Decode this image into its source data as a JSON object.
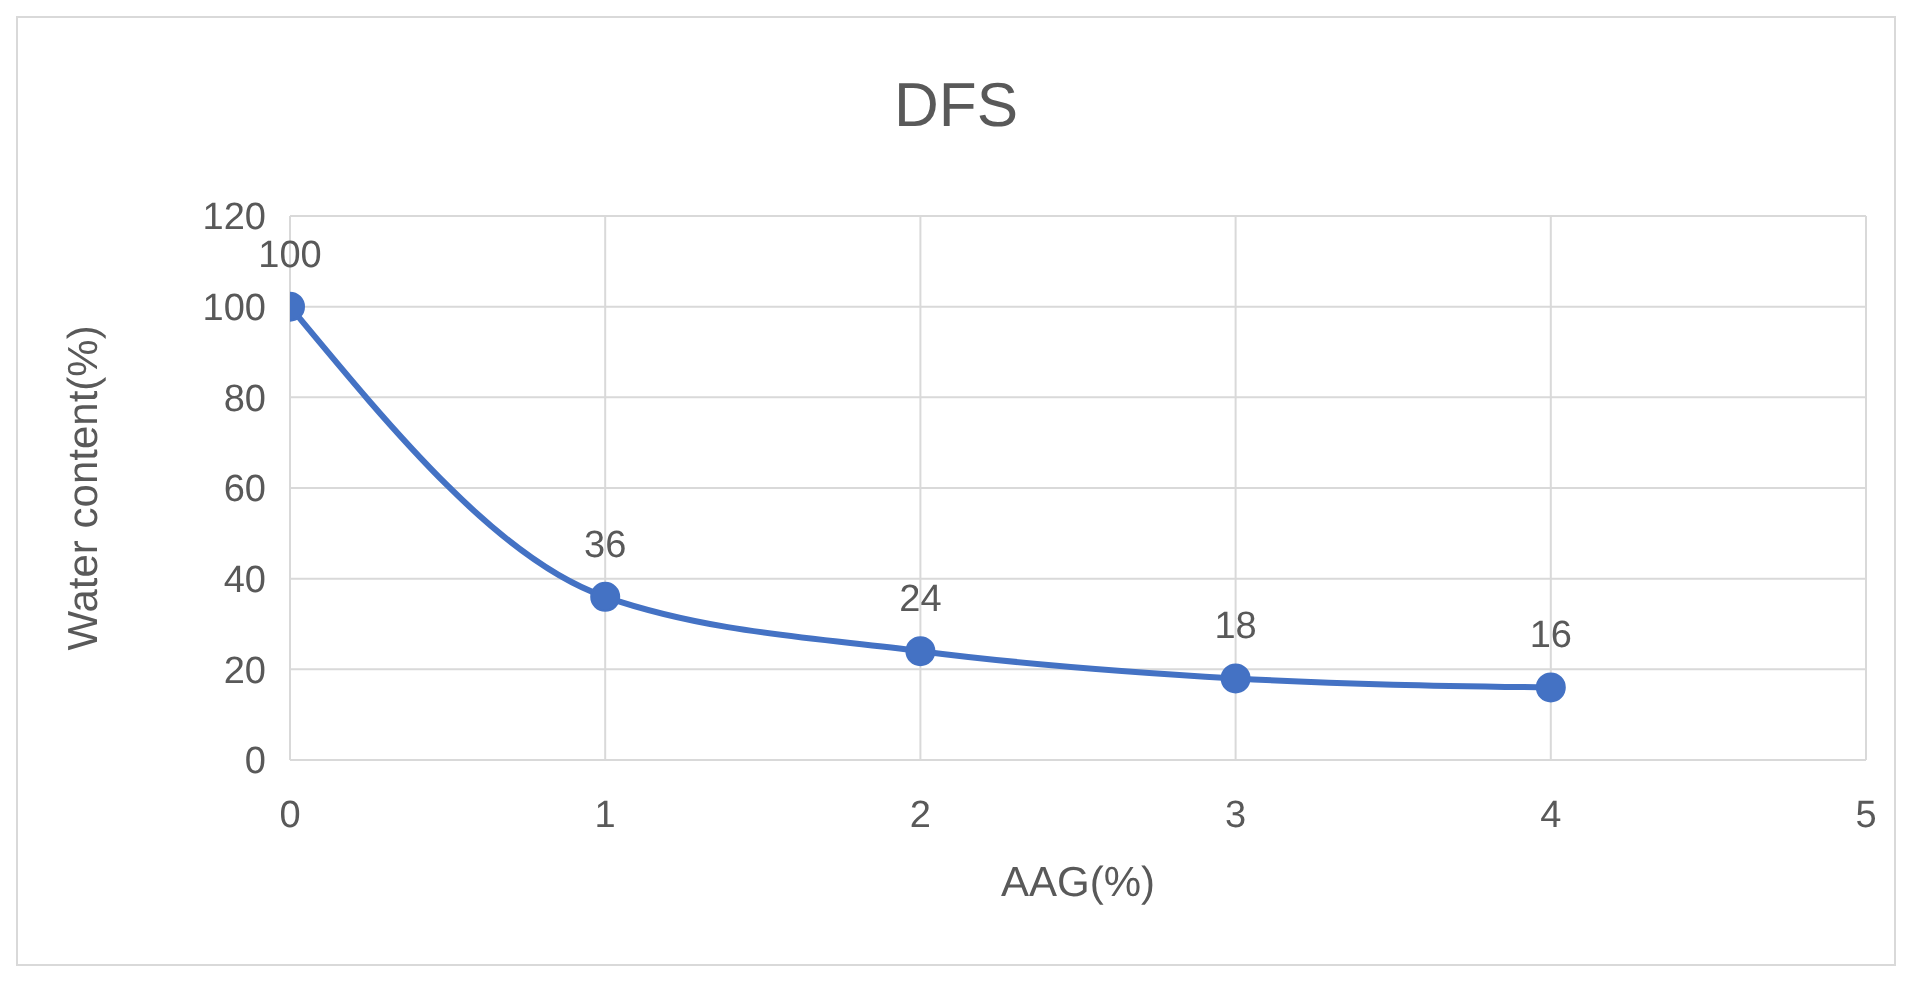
{
  "chart_data": {
    "type": "line",
    "title": "DFS",
    "xlabel": "AAG(%)",
    "ylabel": "Water content(%)",
    "x": [
      0,
      1,
      2,
      3,
      4
    ],
    "series": [
      {
        "color": "#4472c4",
        "values": [
          100,
          36,
          24,
          18,
          16
        ]
      }
    ],
    "xlim": [
      0,
      5
    ],
    "xticks": [
      0,
      1,
      2,
      3,
      4,
      5
    ],
    "ylim": [
      0,
      120
    ],
    "yticks": [
      0,
      20,
      40,
      60,
      80,
      100,
      120
    ],
    "grid": true,
    "marker": "circle",
    "line_style": "solid",
    "data_labels": true,
    "legend": false
  }
}
